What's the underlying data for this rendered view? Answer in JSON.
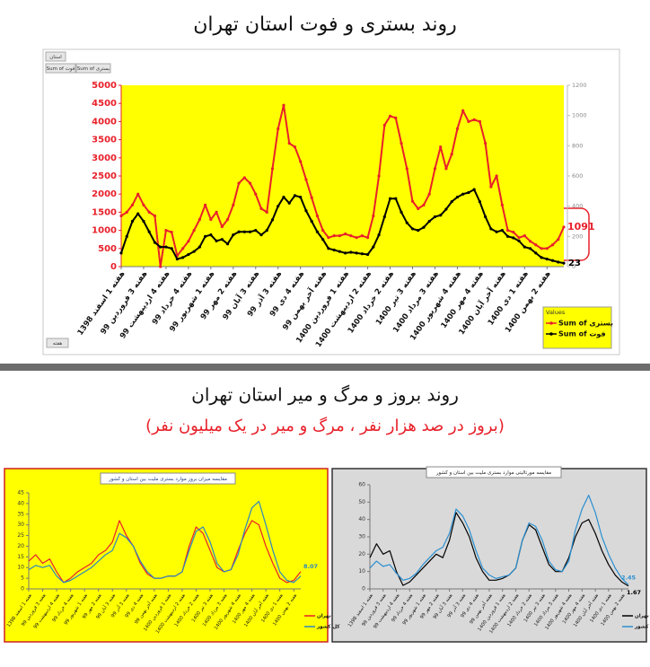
{
  "section2": {
    "title": "روند بروز و مرگ و میر استان تهران",
    "subtitle": "(بروز در صد هزار نفر ، مرگ و میر در یک میلیون نفر)"
  },
  "pivot_fields": {
    "filter": "استان",
    "value_1": "Sum of فوت",
    "value_2": "Sum of بستری",
    "axis": "هفته"
  },
  "chart_data": [
    {
      "type": "line",
      "title": "روند بستری و فوت استان تهران",
      "legend_title": "Values",
      "legend": "bottom-right",
      "grid": false,
      "categories": [
        "هفته 1 اسفند 1398",
        null,
        null,
        null,
        "هفته 3 فروردین 99",
        null,
        null,
        null,
        "هفته 4 اردیبهشت 99",
        null,
        null,
        null,
        "هفته 4 خرداد 99",
        null,
        null,
        null,
        "هفته 1 شهریور 99",
        null,
        null,
        null,
        "هفته 2 مهر 99",
        null,
        null,
        null,
        "هفته 3 آبان 99",
        null,
        null,
        null,
        "هفته 3 آذر 99",
        null,
        null,
        null,
        "هفته 4 دی 99",
        null,
        null,
        null,
        "هفته آخر بهمن 99",
        null,
        null,
        null,
        "هفته 1 فروردین 1400",
        null,
        null,
        null,
        "هفته 2 اردیبهشت 1400",
        null,
        null,
        null,
        "هفته 2 خرداد 1400",
        null,
        null,
        null,
        "هفته 3 تیر 1400",
        null,
        null,
        null,
        "هفته 3 مرداد 1400",
        null,
        null,
        null,
        "هفته 4 شهریور 1400",
        null,
        null,
        null,
        "هفته 4 مهر 1400",
        null,
        null,
        null,
        "هفته آخر آبان 1400",
        null,
        null,
        null,
        "هفته 1 دی 1400",
        null,
        null,
        null,
        "هفته 2 بهمن 1400",
        null,
        null,
        null
      ],
      "ylim": [
        0,
        5000
      ],
      "yticks": [
        0,
        500,
        1000,
        1500,
        2000,
        2500,
        3000,
        3500,
        4000,
        4500,
        5000
      ],
      "y2lim": [
        0,
        1200
      ],
      "y2ticks": [
        0,
        200,
        400,
        600,
        800,
        1000,
        1200
      ],
      "series": [
        {
          "name": "Sum of بستری",
          "color": "#e8202a",
          "values": [
            1400,
            1500,
            1700,
            2000,
            1700,
            1500,
            1400,
            0,
            1000,
            950,
            300,
            500,
            700,
            1000,
            1300,
            1700,
            1300,
            1500,
            1100,
            1300,
            1700,
            2300,
            2450,
            2300,
            2000,
            1600,
            1500,
            2700,
            3800,
            4450,
            3400,
            3300,
            2900,
            2400,
            1900,
            1400,
            1000,
            800,
            850,
            850,
            900,
            850,
            800,
            850,
            800,
            1400,
            2500,
            3900,
            4150,
            4100,
            3400,
            2700,
            1800,
            1600,
            1700,
            2000,
            2700,
            3300,
            2700,
            3100,
            3800,
            4300,
            4000,
            4050,
            4000,
            3400,
            2200,
            2500,
            1700,
            1000,
            950,
            800,
            850,
            700,
            600,
            500,
            500,
            600,
            750,
            1091
          ]
        },
        {
          "name": "Sum of فوت",
          "color": "#000000",
          "axis": "y2",
          "values": [
            90,
            200,
            300,
            350,
            300,
            230,
            160,
            130,
            130,
            120,
            50,
            60,
            80,
            100,
            130,
            200,
            210,
            170,
            180,
            150,
            210,
            230,
            230,
            230,
            240,
            210,
            240,
            310,
            400,
            460,
            420,
            470,
            460,
            370,
            300,
            230,
            180,
            120,
            110,
            100,
            90,
            95,
            90,
            85,
            80,
            130,
            210,
            330,
            450,
            450,
            360,
            290,
            250,
            240,
            260,
            300,
            330,
            340,
            380,
            430,
            460,
            480,
            490,
            510,
            430,
            330,
            250,
            230,
            240,
            200,
            190,
            170,
            130,
            120,
            90,
            60,
            50,
            40,
            30,
            23
          ]
        }
      ]
    },
    {
      "type": "line",
      "title": "مقایسه میزان بروز موارد بستری ملیت بین استان و کشور",
      "legend": "bottom-right",
      "grid": false,
      "categories": [
        "هفته 1 اسفند 1398",
        null,
        "هفته 3 فروردین 99",
        null,
        "هفته 4 اردیبهشت 99",
        null,
        "هفته 4 خرداد 99",
        null,
        "هفته 1 شهریور 99",
        null,
        "هفته 2 مهر 99",
        null,
        "هفته 3 آبان 99",
        null,
        "هفته 3 آذر 99",
        null,
        "هفته 4 دی 99",
        null,
        "هفته آخر بهمن 99",
        null,
        "هفته 1 فروردین 1400",
        null,
        "هفته 2 اردیبهشت 1400",
        null,
        "هفته 2 خرداد 1400",
        null,
        "هفته 3 تیر 1400",
        null,
        "هفته 3 مرداد 1400",
        null,
        "هفته 4 شهریور 1400",
        null,
        "هفته 4 مهر 1400",
        null,
        "هفته آخر آبان 1400",
        null,
        "هفته 1 دی 1400",
        null,
        "هفته 2 بهمن 1400",
        null
      ],
      "ylim": [
        0,
        45
      ],
      "yticks": [
        0,
        5,
        10,
        15,
        20,
        25,
        30,
        35,
        40,
        45
      ],
      "series": [
        {
          "name": "تهران",
          "color": "#e8202a",
          "values": [
            13,
            16,
            12,
            14,
            8,
            3,
            5,
            8,
            10,
            12,
            16,
            18,
            22,
            32,
            25,
            20,
            12,
            7,
            5,
            5,
            6,
            6,
            8,
            20,
            29,
            26,
            18,
            10,
            8,
            9,
            18,
            26,
            32,
            30,
            20,
            12,
            5,
            3,
            4,
            8.07
          ]
        },
        {
          "name": "کل کشور",
          "color": "#2e86c1",
          "values": [
            9,
            11,
            10,
            11,
            6,
            3,
            4,
            6,
            8,
            10,
            13,
            16,
            18,
            26,
            24,
            20,
            13,
            8,
            5,
            5,
            6,
            6,
            8,
            18,
            27,
            29,
            22,
            12,
            8,
            9,
            16,
            28,
            38,
            41,
            30,
            18,
            8,
            4,
            3,
            6
          ]
        }
      ]
    },
    {
      "type": "line",
      "title": "مقایسه مورتالیتی موارد بستری ملیت بین استان و کشور",
      "legend": "bottom-right",
      "grid": false,
      "categories": [
        "هفته 1 اسفند 1398",
        null,
        "هفته 3 فروردین 99",
        null,
        "هفته 4 اردیبهشت 99",
        null,
        "هفته 4 خرداد 99",
        null,
        "هفته 1 شهریور 99",
        null,
        "هفته 2 مهر 99",
        null,
        "هفته 3 آبان 99",
        null,
        "هفته 3 آذر 99",
        null,
        "هفته 4 دی 99",
        null,
        "هفته آخر بهمن 99",
        null,
        "هفته 1 فروردین 1400",
        null,
        "هفته 2 اردیبهشت 1400",
        null,
        "هفته 2 خرداد 1400",
        null,
        "هفته 3 تیر 1400",
        null,
        "هفته 3 مرداد 1400",
        null,
        "هفته 4 شهریور 1400",
        null,
        "هفته 4 مهر 1400",
        null,
        "هفته آخر آبان 1400",
        null,
        "هفته 1 دی 1400",
        null,
        "هفته 2 بهمن 1400",
        null
      ],
      "ylim": [
        0,
        60
      ],
      "yticks": [
        0,
        10,
        20,
        30,
        40,
        50,
        60
      ],
      "series": [
        {
          "name": "تهران",
          "color": "#000000",
          "values": [
            18,
            26,
            20,
            22,
            10,
            2,
            4,
            8,
            12,
            16,
            20,
            18,
            28,
            44,
            38,
            30,
            18,
            10,
            5,
            5,
            6,
            8,
            12,
            28,
            37,
            34,
            24,
            14,
            10,
            10,
            18,
            30,
            38,
            40,
            32,
            22,
            14,
            8,
            4,
            1.67
          ]
        },
        {
          "name": "کل کشور",
          "color": "#2a8fd0",
          "values": [
            12,
            16,
            13,
            14,
            9,
            5,
            6,
            9,
            14,
            18,
            22,
            24,
            32,
            46,
            42,
            34,
            22,
            12,
            8,
            6,
            7,
            8,
            12,
            28,
            38,
            36,
            28,
            16,
            11,
            10,
            16,
            34,
            46,
            54,
            44,
            30,
            20,
            12,
            6,
            2.45
          ]
        }
      ]
    }
  ]
}
